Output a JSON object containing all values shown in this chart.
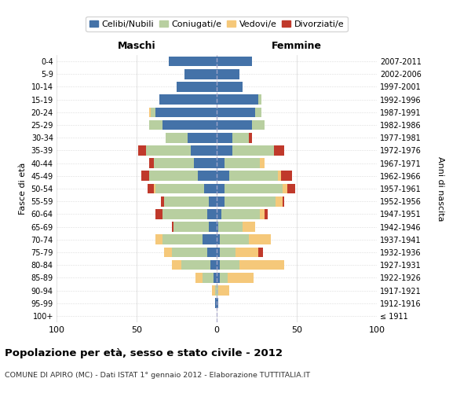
{
  "age_groups": [
    "100+",
    "95-99",
    "90-94",
    "85-89",
    "80-84",
    "75-79",
    "70-74",
    "65-69",
    "60-64",
    "55-59",
    "50-54",
    "45-49",
    "40-44",
    "35-39",
    "30-34",
    "25-29",
    "20-24",
    "15-19",
    "10-14",
    "5-9",
    "0-4"
  ],
  "birth_years": [
    "≤ 1911",
    "1912-1916",
    "1917-1921",
    "1922-1926",
    "1927-1931",
    "1932-1936",
    "1937-1941",
    "1942-1946",
    "1947-1951",
    "1952-1956",
    "1957-1961",
    "1962-1966",
    "1967-1971",
    "1972-1976",
    "1977-1981",
    "1982-1986",
    "1987-1991",
    "1992-1996",
    "1997-2001",
    "2002-2006",
    "2007-2011"
  ],
  "maschi": {
    "celibi": [
      0,
      1,
      0,
      2,
      4,
      6,
      9,
      5,
      6,
      5,
      8,
      12,
      14,
      16,
      18,
      34,
      38,
      36,
      25,
      20,
      30
    ],
    "coniugati": [
      0,
      0,
      1,
      7,
      18,
      22,
      25,
      22,
      28,
      28,
      30,
      30,
      25,
      28,
      14,
      8,
      3,
      0,
      0,
      0,
      0
    ],
    "vedovi": [
      0,
      0,
      2,
      4,
      6,
      5,
      4,
      0,
      0,
      0,
      1,
      0,
      0,
      0,
      0,
      0,
      1,
      0,
      0,
      0,
      0
    ],
    "divorziati": [
      0,
      0,
      0,
      0,
      0,
      0,
      0,
      1,
      4,
      2,
      4,
      5,
      3,
      5,
      0,
      0,
      0,
      0,
      0,
      0,
      0
    ]
  },
  "femmine": {
    "nubili": [
      0,
      1,
      0,
      2,
      2,
      2,
      2,
      1,
      3,
      5,
      5,
      8,
      5,
      10,
      10,
      22,
      24,
      26,
      16,
      14,
      22
    ],
    "coniugate": [
      0,
      0,
      1,
      5,
      12,
      10,
      18,
      15,
      24,
      32,
      36,
      30,
      22,
      26,
      10,
      8,
      4,
      2,
      0,
      0,
      0
    ],
    "vedove": [
      0,
      0,
      7,
      16,
      28,
      14,
      14,
      8,
      3,
      4,
      3,
      2,
      3,
      0,
      0,
      0,
      0,
      0,
      0,
      0,
      0
    ],
    "divorziate": [
      0,
      0,
      0,
      0,
      0,
      3,
      0,
      0,
      2,
      1,
      5,
      7,
      0,
      6,
      2,
      0,
      0,
      0,
      0,
      0,
      0
    ]
  },
  "colors": {
    "celibi_nubili": "#4472a8",
    "coniugati": "#b8cfa0",
    "vedovi": "#f5c87a",
    "divorziati": "#c0392b"
  },
  "title": "Popolazione per età, sesso e stato civile - 2012",
  "subtitle": "COMUNE DI APIRO (MC) - Dati ISTAT 1° gennaio 2012 - Elaborazione TUTTITALIA.IT",
  "ylabel_left": "Fasce di età",
  "ylabel_right": "Anni di nascita",
  "xlabel_left": "Maschi",
  "xlabel_right": "Femmine",
  "legend_labels": [
    "Celibi/Nubili",
    "Coniugati/e",
    "Vedovi/e",
    "Divorziati/e"
  ],
  "xlim": 100,
  "background_color": "#ffffff",
  "grid_color": "#cccccc"
}
